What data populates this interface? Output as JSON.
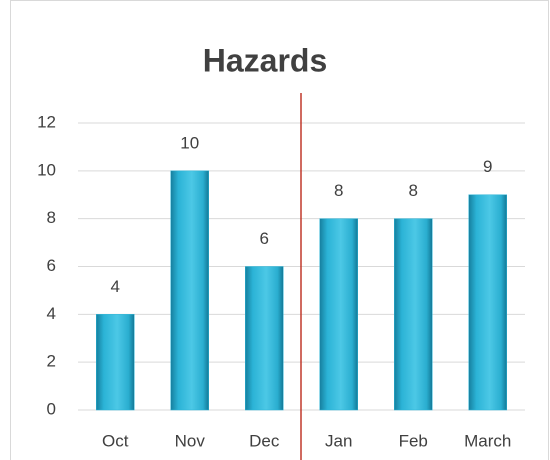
{
  "chart_data": {
    "type": "bar",
    "title": "Hazards",
    "categories": [
      "Oct",
      "Nov",
      "Dec",
      "Jan",
      "Feb",
      "March"
    ],
    "values": [
      4,
      10,
      6,
      8,
      8,
      9
    ],
    "color": "#2bb3d6",
    "ylim": [
      0,
      12
    ],
    "yticks": [
      0,
      2,
      4,
      6,
      8,
      10,
      12
    ],
    "grid": true
  }
}
